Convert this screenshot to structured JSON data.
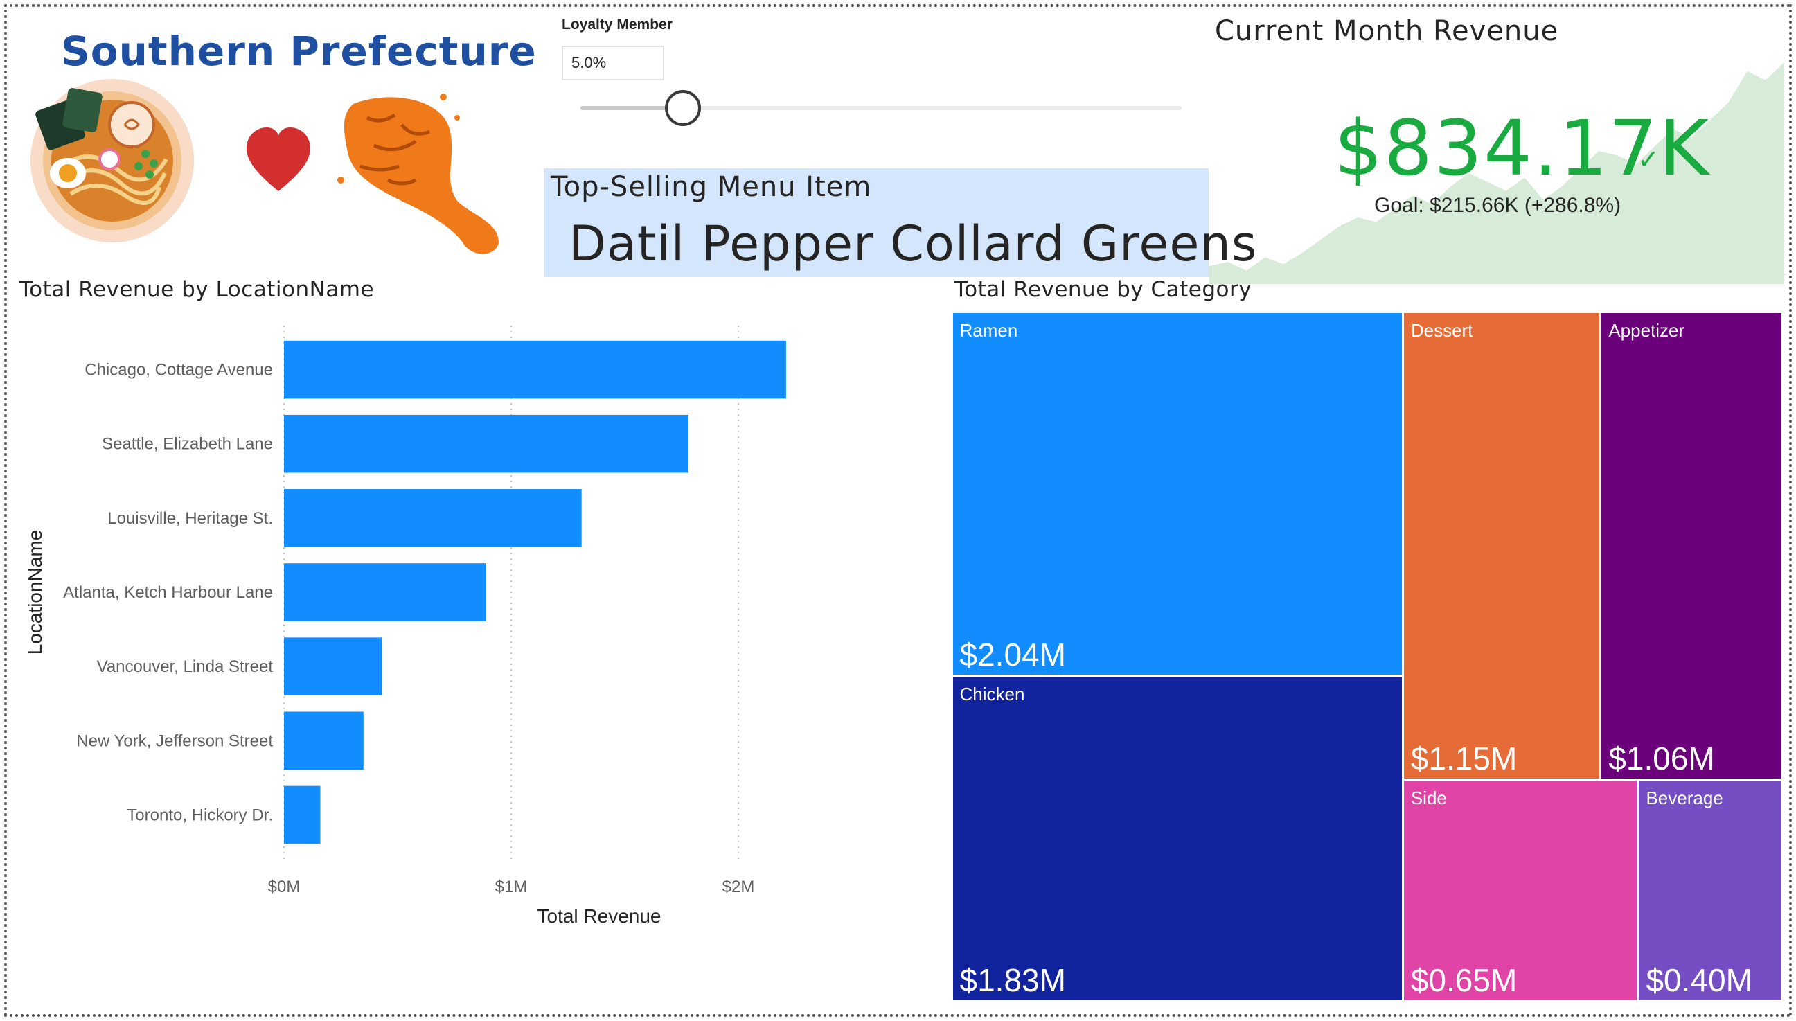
{
  "brand": {
    "title": "Southern Prefecture",
    "logo_icons": [
      "ramen-bowl-icon",
      "heart-icon",
      "fried-chicken-icon"
    ]
  },
  "slicer": {
    "title": "Loyalty Member",
    "value": "5.0%",
    "slider_fraction": 0.17
  },
  "top_selling": {
    "title": "Top-Selling Menu Item",
    "value": "Datil Pepper Collard Greens"
  },
  "kpi": {
    "title": "Current Month Revenue",
    "value": "$834.17K",
    "goal_text": "Goal: $215.66K (+286.8%)",
    "status_icon": "checkmark-icon",
    "color": "#1aab40",
    "trend_color": "#d6ecd9"
  },
  "chart_data": [
    {
      "type": "bar",
      "orientation": "horizontal",
      "title": "Total Revenue by LocationName",
      "xlabel": "Total Revenue",
      "ylabel": "LocationName",
      "categories": [
        "Chicago, Cottage Avenue",
        "Seattle, Elizabeth Lane",
        "Louisville, Heritage St.",
        "Atlanta, Ketch Harbour Lane",
        "Vancouver, Linda Street",
        "New York, Jefferson Street",
        "Toronto, Hickory Dr."
      ],
      "values": [
        2.21,
        1.78,
        1.31,
        0.89,
        0.43,
        0.35,
        0.16
      ],
      "unit": "M",
      "xlim": [
        0,
        2.5
      ],
      "xticks": [
        0,
        1,
        2
      ],
      "xtick_labels": [
        "$0M",
        "$1M",
        "$2M"
      ],
      "grid": true,
      "bar_color": "#118dff"
    },
    {
      "type": "treemap",
      "title": "Total Revenue by Category",
      "categories": [
        "Ramen",
        "Chicken",
        "Dessert",
        "Appetizer",
        "Side",
        "Beverage"
      ],
      "values": [
        2.04,
        1.83,
        1.15,
        1.06,
        0.65,
        0.4
      ],
      "value_labels": [
        "$2.04M",
        "$1.83M",
        "$1.15M",
        "$1.06M",
        "$0.65M",
        "$0.40M"
      ],
      "colors": [
        "#118dff",
        "#12239e",
        "#e66c37",
        "#6b007b",
        "#e044a7",
        "#744ec2"
      ]
    }
  ]
}
